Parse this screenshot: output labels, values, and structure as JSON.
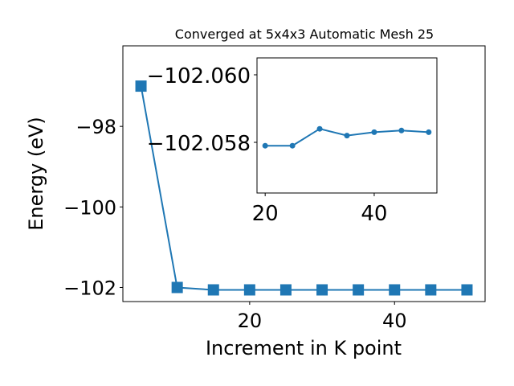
{
  "chart_data": [
    {
      "type": "line",
      "title": "Converged at 5x4x3 Automatic Mesh 25",
      "xlabel": "Increment in K point",
      "ylabel": "Energy (eV)",
      "xlim": [
        2.5,
        52.5
      ],
      "ylim": [
        -102.35,
        -96.0
      ],
      "xticks": [
        20,
        40
      ],
      "yticks": [
        -98,
        -100,
        -102
      ],
      "xtick_labels": [
        "20",
        "40"
      ],
      "ytick_labels": [
        "−98",
        "−100",
        "−102"
      ],
      "grid": false,
      "series": [
        {
          "marker": "square",
          "color": "#1f77b4",
          "x": [
            5,
            10,
            15,
            20,
            25,
            30,
            35,
            40,
            45,
            50
          ],
          "y": [
            -97.0,
            -102.0,
            -102.06,
            -102.06,
            -102.06,
            -102.06,
            -102.06,
            -102.06,
            -102.06,
            -102.06
          ]
        }
      ]
    },
    {
      "type": "line",
      "inset": true,
      "xlim": [
        18.5,
        51.5
      ],
      "ylim": [
        -102.0565,
        -102.0605
      ],
      "xticks": [
        20,
        40
      ],
      "yticks": [
        -102.06,
        -102.058
      ],
      "xtick_labels": [
        "20",
        "40"
      ],
      "ytick_labels": [
        "−102.060",
        "−102.058"
      ],
      "grid": false,
      "series": [
        {
          "marker": "circle",
          "color": "#1f77b4",
          "x": [
            20,
            25,
            30,
            35,
            40,
            45,
            50
          ],
          "y": [
            -102.0579,
            -102.0579,
            -102.0584,
            -102.0582,
            -102.0583,
            -102.05835,
            -102.0583
          ]
        }
      ]
    }
  ]
}
